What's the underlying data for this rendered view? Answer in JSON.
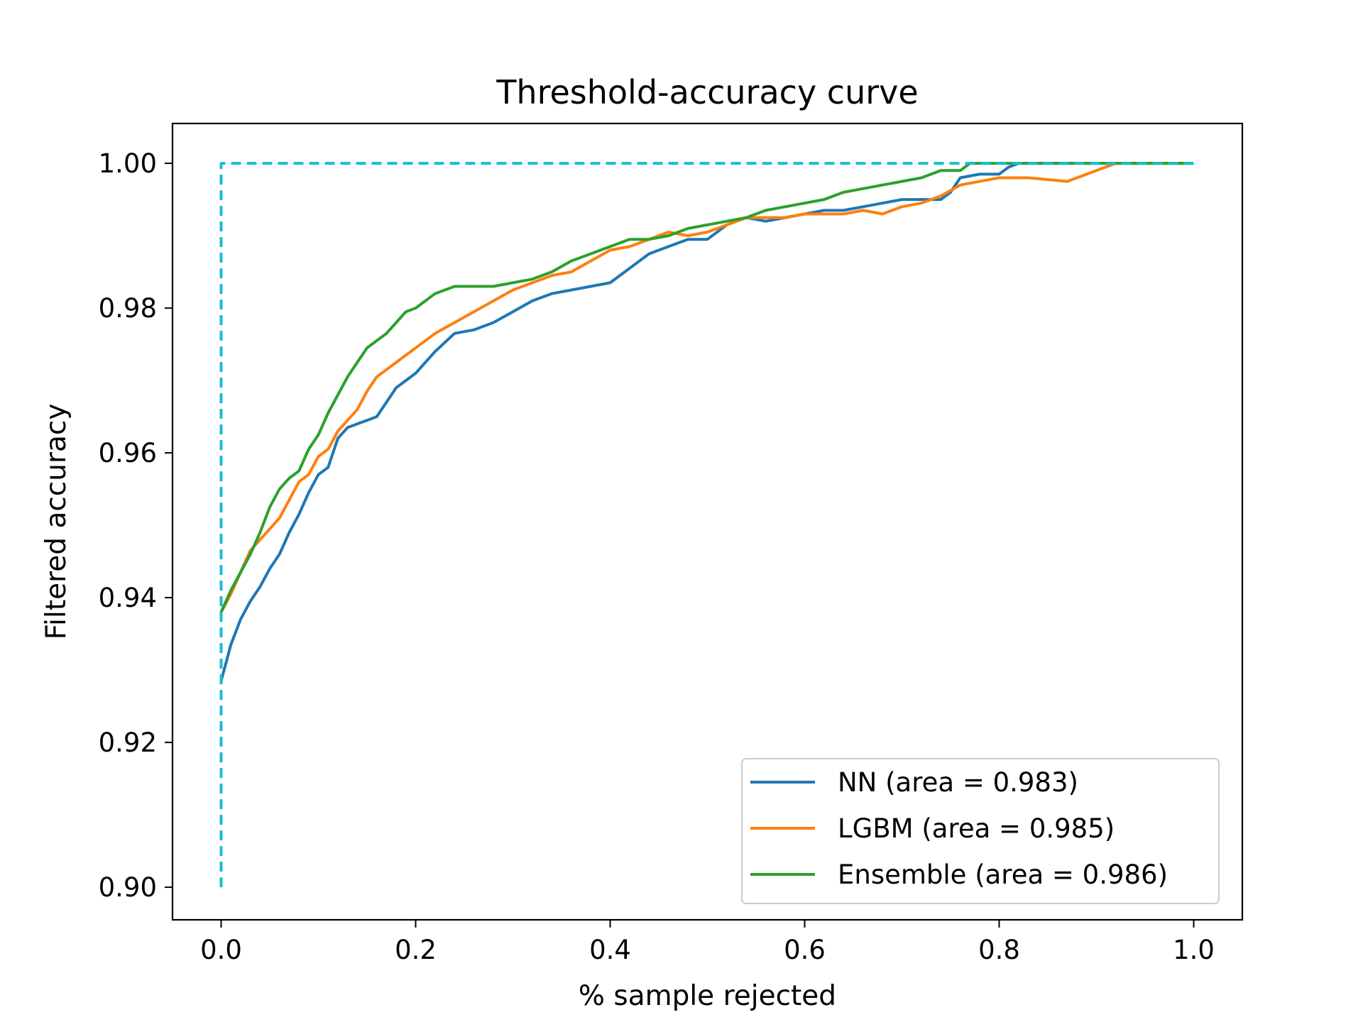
{
  "chart_data": {
    "type": "line",
    "title": "Threshold-accuracy curve",
    "xlabel": "% sample rejected",
    "ylabel": "Filtered accuracy",
    "xlim": [
      -0.05,
      1.05
    ],
    "ylim": [
      0.8955,
      1.0055
    ],
    "xticks": [
      0.0,
      0.2,
      0.4,
      0.6,
      0.8,
      1.0
    ],
    "xtick_labels": [
      "0.0",
      "0.2",
      "0.4",
      "0.6",
      "0.8",
      "1.0"
    ],
    "yticks": [
      0.9,
      0.92,
      0.94,
      0.96,
      0.98,
      1.0
    ],
    "ytick_labels": [
      "0.90",
      "0.92",
      "0.94",
      "0.96",
      "0.98",
      "1.00"
    ],
    "grid": false,
    "legend_position": "lower-right",
    "series": [
      {
        "name": "NN (area = 0.983)",
        "color": "#1f77b4",
        "dashed": false,
        "x": [
          0.0,
          0.005,
          0.01,
          0.02,
          0.03,
          0.04,
          0.05,
          0.06,
          0.07,
          0.08,
          0.09,
          0.1,
          0.11,
          0.12,
          0.13,
          0.14,
          0.15,
          0.16,
          0.17,
          0.18,
          0.19,
          0.2,
          0.22,
          0.24,
          0.26,
          0.28,
          0.3,
          0.32,
          0.34,
          0.36,
          0.38,
          0.4,
          0.42,
          0.44,
          0.46,
          0.48,
          0.5,
          0.52,
          0.54,
          0.56,
          0.58,
          0.6,
          0.62,
          0.64,
          0.66,
          0.68,
          0.7,
          0.72,
          0.74,
          0.75,
          0.76,
          0.78,
          0.8,
          0.81,
          0.82,
          0.9,
          1.0
        ],
        "y": [
          0.9285,
          0.931,
          0.9335,
          0.937,
          0.9395,
          0.9415,
          0.944,
          0.946,
          0.949,
          0.9515,
          0.9545,
          0.957,
          0.958,
          0.962,
          0.9635,
          0.964,
          0.9645,
          0.965,
          0.967,
          0.969,
          0.97,
          0.971,
          0.974,
          0.9765,
          0.977,
          0.978,
          0.9795,
          0.981,
          0.982,
          0.9825,
          0.983,
          0.9835,
          0.9855,
          0.9875,
          0.9885,
          0.9895,
          0.9895,
          0.9915,
          0.9925,
          0.992,
          0.9925,
          0.993,
          0.9935,
          0.9935,
          0.994,
          0.9945,
          0.995,
          0.995,
          0.995,
          0.996,
          0.998,
          0.9985,
          0.9985,
          0.9995,
          1.0,
          1.0,
          1.0
        ]
      },
      {
        "name": "LGBM (area = 0.985)",
        "color": "#ff7f0e",
        "dashed": false,
        "x": [
          0.0,
          0.01,
          0.02,
          0.03,
          0.04,
          0.05,
          0.06,
          0.07,
          0.08,
          0.09,
          0.1,
          0.11,
          0.12,
          0.13,
          0.14,
          0.15,
          0.16,
          0.17,
          0.18,
          0.19,
          0.2,
          0.22,
          0.24,
          0.26,
          0.28,
          0.3,
          0.32,
          0.34,
          0.36,
          0.38,
          0.4,
          0.42,
          0.44,
          0.46,
          0.48,
          0.5,
          0.52,
          0.54,
          0.56,
          0.58,
          0.6,
          0.62,
          0.64,
          0.66,
          0.68,
          0.7,
          0.72,
          0.74,
          0.76,
          0.8,
          0.83,
          0.87,
          0.9,
          0.92,
          1.0
        ],
        "y": [
          0.938,
          0.9405,
          0.9435,
          0.9465,
          0.948,
          0.9495,
          0.951,
          0.9535,
          0.956,
          0.957,
          0.9595,
          0.9605,
          0.963,
          0.9645,
          0.966,
          0.9685,
          0.9705,
          0.9715,
          0.9725,
          0.9735,
          0.9745,
          0.9765,
          0.978,
          0.9795,
          0.981,
          0.9825,
          0.9835,
          0.9845,
          0.985,
          0.9865,
          0.988,
          0.9885,
          0.9895,
          0.9905,
          0.99,
          0.9905,
          0.9915,
          0.9925,
          0.9925,
          0.9925,
          0.993,
          0.993,
          0.993,
          0.9935,
          0.993,
          0.994,
          0.9945,
          0.9955,
          0.997,
          0.998,
          0.998,
          0.9975,
          0.999,
          1.0,
          1.0
        ]
      },
      {
        "name": "Ensemble (area = 0.986)",
        "color": "#2ca02c",
        "dashed": false,
        "x": [
          0.0,
          0.01,
          0.02,
          0.03,
          0.04,
          0.05,
          0.06,
          0.07,
          0.08,
          0.09,
          0.1,
          0.11,
          0.12,
          0.13,
          0.14,
          0.15,
          0.16,
          0.17,
          0.18,
          0.19,
          0.2,
          0.22,
          0.24,
          0.26,
          0.28,
          0.3,
          0.32,
          0.34,
          0.36,
          0.38,
          0.4,
          0.42,
          0.44,
          0.46,
          0.48,
          0.5,
          0.52,
          0.54,
          0.56,
          0.58,
          0.6,
          0.62,
          0.64,
          0.66,
          0.68,
          0.7,
          0.72,
          0.74,
          0.76,
          0.77,
          0.78,
          0.8,
          0.85,
          0.9,
          1.0
        ],
        "y": [
          0.938,
          0.941,
          0.9435,
          0.946,
          0.949,
          0.9525,
          0.955,
          0.9565,
          0.9575,
          0.9605,
          0.9625,
          0.9655,
          0.968,
          0.9705,
          0.9725,
          0.9745,
          0.9755,
          0.9765,
          0.978,
          0.9795,
          0.98,
          0.982,
          0.983,
          0.983,
          0.983,
          0.9835,
          0.984,
          0.985,
          0.9865,
          0.9875,
          0.9885,
          0.9895,
          0.9895,
          0.99,
          0.991,
          0.9915,
          0.992,
          0.9925,
          0.9935,
          0.994,
          0.9945,
          0.995,
          0.996,
          0.9965,
          0.997,
          0.9975,
          0.998,
          0.999,
          0.999,
          1.0,
          1.0,
          1.0,
          1.0,
          1.0,
          1.0
        ]
      },
      {
        "name": "",
        "color": "#17becf",
        "dashed": true,
        "x": [
          0.0,
          0.0,
          1.0
        ],
        "y": [
          0.9,
          1.0,
          1.0
        ]
      }
    ]
  }
}
